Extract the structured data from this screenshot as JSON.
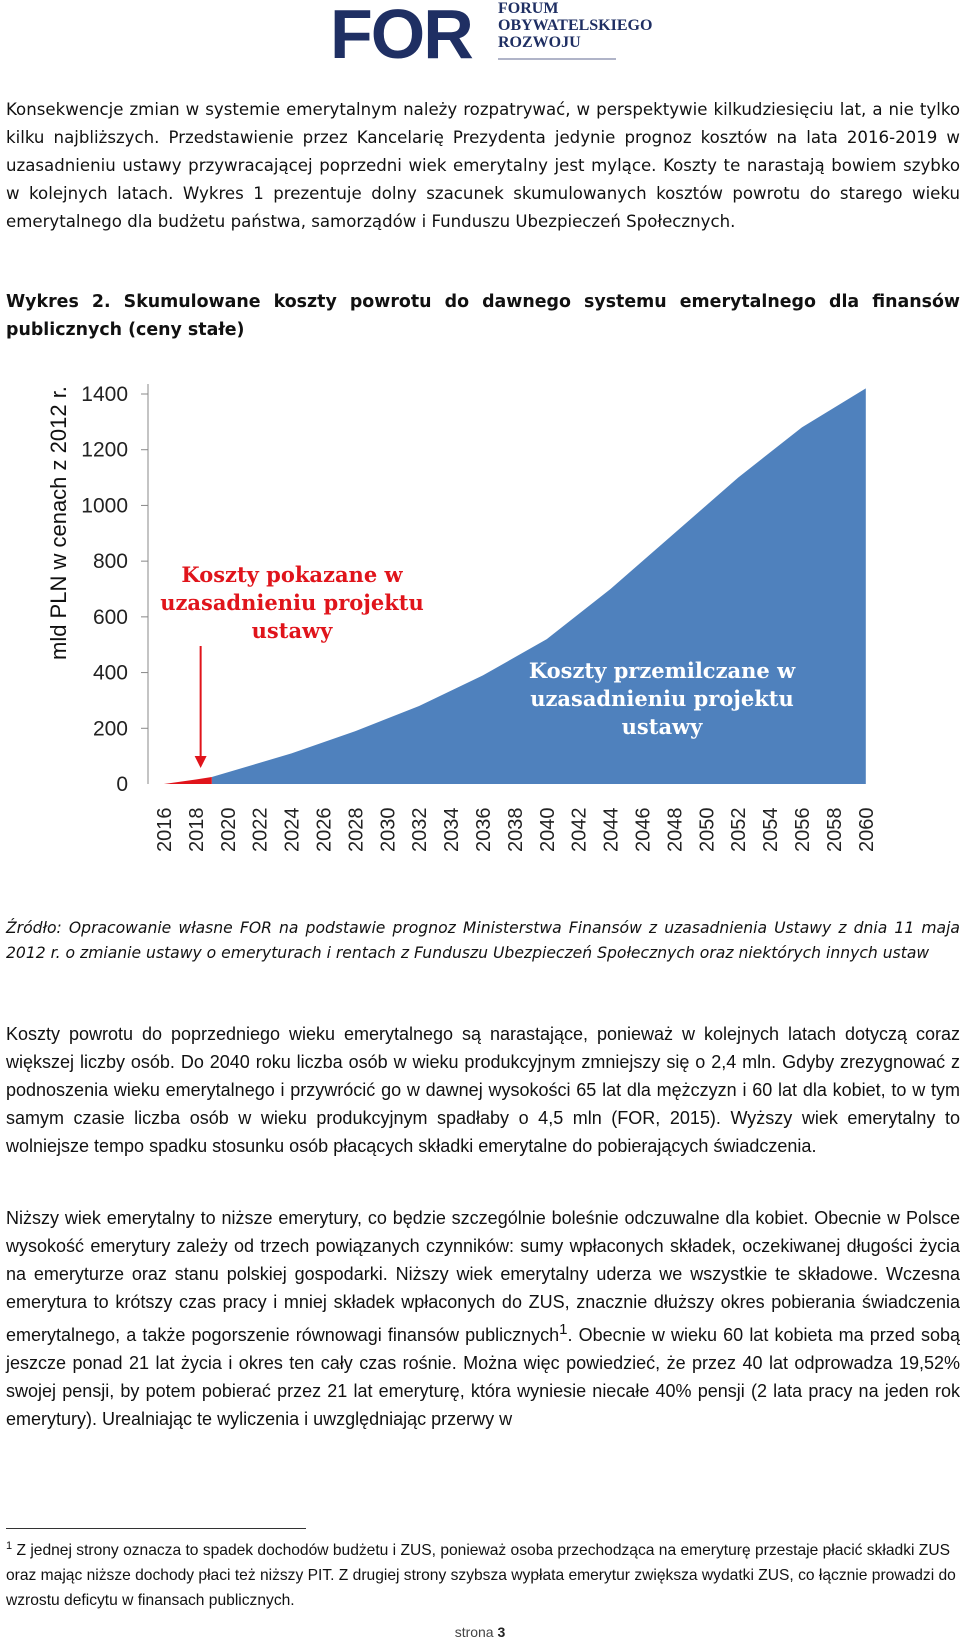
{
  "logo": {
    "abbr": "FOR",
    "line1": "FORUM",
    "line2": "OBYWATELSKIEGO",
    "line3": "ROZWOJU"
  },
  "paragraph1": "Konsekwencje zmian w systemie emerytalnym należy rozpatrywać, w perspektywie kilkudziesięciu lat, a nie tylko kilku najbliższych. Przedstawienie przez Kancelarię Prezydenta jedynie prognoz kosztów na lata 2016-2019 w uzasadnieniu ustawy przywracającej poprzedni wiek emerytalny jest mylące. Koszty te narastają bowiem szybko w kolejnych latach. Wykres 1 prezentuje dolny szacunek skumulowanych kosztów powrotu do starego wieku emerytalnego dla budżetu państwa, samorządów i Funduszu Ubezpieczeń Społecznych.",
  "figure_caption": "Wykres 2. Skumulowane koszty powrotu do dawnego systemu emerytalnego dla finansów publicznych (ceny stałe)",
  "chart_data": {
    "type": "area",
    "ylabel": "mld PLN w cenach z 2012 r.",
    "ylim": [
      0,
      1400
    ],
    "yticks": [
      "0",
      "200",
      "400",
      "600",
      "800",
      "1000",
      "1200",
      "1400"
    ],
    "xticks": [
      "2016",
      "2018",
      "2020",
      "2022",
      "2024",
      "2026",
      "2028",
      "2030",
      "2032",
      "2034",
      "2036",
      "2038",
      "2040",
      "2042",
      "2044",
      "2046",
      "2048",
      "2050",
      "2052",
      "2054",
      "2056",
      "2058",
      "2060"
    ],
    "x": [
      2016,
      2019,
      2024,
      2028,
      2032,
      2036,
      2040,
      2044,
      2048,
      2052,
      2056,
      2060
    ],
    "series": [
      {
        "color": "#e0141b",
        "x": [
          2016,
          2017,
          2018,
          2019
        ],
        "values": [
          0,
          8,
          16,
          25
        ]
      },
      {
        "color": "#4f81bd",
        "x": [
          2019,
          2024,
          2028,
          2032,
          2036,
          2040,
          2044,
          2048,
          2052,
          2056,
          2060
        ],
        "values": [
          25,
          110,
          190,
          280,
          390,
          520,
          700,
          900,
          1100,
          1280,
          1420
        ]
      }
    ],
    "annotations": [
      {
        "text_lines": [
          "Koszty pokazane w",
          "uzasadnieniu projektu",
          "ustawy"
        ],
        "color": "#e0141b"
      },
      {
        "text_lines": [
          "Koszty przemilczane w",
          "uzasadnieniu projektu",
          "ustawy"
        ],
        "color": "#ffffff"
      }
    ],
    "grid": false
  },
  "source_note": "Źródło: Opracowanie własne FOR na podstawie prognoz Ministerstwa Finansów z uzasadnienia Ustawy z dnia 11 maja 2012 r. o zmianie ustawy o emeryturach i rentach z Funduszu Ubezpieczeń Społecznych oraz niektórych innych ustaw",
  "paragraph2": "Koszty powrotu do poprzedniego wieku emerytalnego są narastające, ponieważ w kolejnych latach dotyczą coraz większej liczby osób. Do 2040 roku liczba osób w wieku produkcyjnym zmniejszy się o 2,4 mln. Gdyby zrezygnować z podnoszenia wieku emerytalnego i przywrócić go w dawnej wysokości 65 lat dla mężczyzn i 60 lat dla kobiet, to w tym samym czasie liczba osób w wieku produkcyjnym spadłaby o 4,5 mln (FOR, 2015). Wyższy wiek emerytalny to wolniejsze tempo spadku stosunku osób płacących składki emerytalne do pobierających świadczenia.",
  "paragraph3_a": "Niższy wiek emerytalny to niższe emerytury, co będzie szczególnie boleśnie odczuwalne dla kobiet. Obecnie w Polsce wysokość emerytury zależy od trzech powiązanych czynników: sumy wpłaconych składek, oczekiwanej długości życia na emeryturze oraz stanu polskiej gospodarki. Niższy wiek emerytalny uderza we wszystkie te składowe. Wczesna emerytura to krótszy czas pracy i mniej składek wpłaconych do ZUS, znacznie dłuższy okres pobierania świadczenia emerytalnego, a także pogorszenie równowagi finansów publicznych",
  "footnote_ref": "1",
  "paragraph3_b": ". Obecnie w wieku 60 lat kobieta ma przed sobą jeszcze ponad 21 lat życia i okres ten cały czas rośnie. Można więc powiedzieć, że przez 40 lat odprowadza 19,52% swojej pensji, by potem pobierać przez 21 lat emeryturę, która wyniesie niecałe 40% pensji (2 lata pracy na jeden rok emerytury). Urealniając te wyliczenia i uwzględniając przerwy w",
  "footnote": {
    "marker": "1",
    "text": " Z jednej strony oznacza to spadek dochodów budżetu i ZUS, ponieważ osoba przechodząca na emeryturę przestaje płacić składki ZUS oraz mając niższe dochody płaci też niższy PIT. Z drugiej strony szybsza wypłata emerytur zwiększa wydatki ZUS, co łącznie prowadzi do wzrostu deficytu w finansach publicznych."
  },
  "page": {
    "label": "strona",
    "number": "3"
  }
}
